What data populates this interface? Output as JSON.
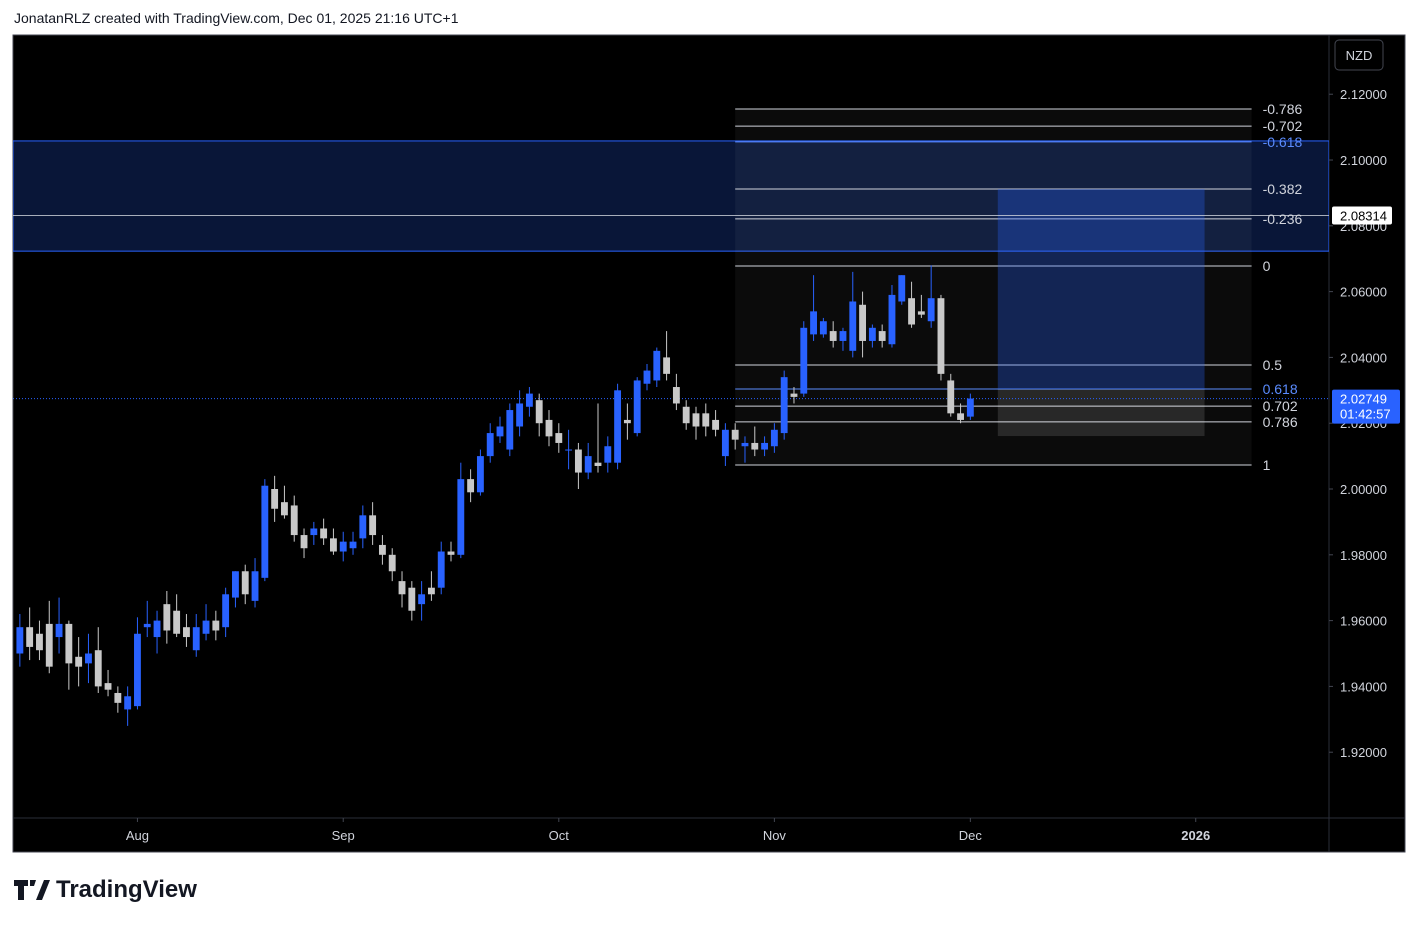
{
  "chart_data": {
    "type": "candlestick",
    "title": "JonatanRLZ created with TradingView.com, Dec 01, 2025 21:16 UTC+1",
    "currency": "NZD",
    "up_color": "#2962ff",
    "down_color": "#c9c9c9",
    "xlim": [
      -0.7,
      133.6
    ],
    "xticks": [
      {
        "value": 12,
        "label": "Aug"
      },
      {
        "value": 33,
        "label": "Sep"
      },
      {
        "value": 55,
        "label": "Oct"
      },
      {
        "value": 77,
        "label": "Nov"
      },
      {
        "value": 97,
        "label": "Dec"
      },
      {
        "value": 120,
        "label": "2026"
      }
    ],
    "ylim": [
      1.9,
      2.138
    ],
    "yticks": [
      {
        "value": 2.12,
        "label": "2.12000"
      },
      {
        "value": 2.1,
        "label": "2.10000"
      },
      {
        "value": 2.08,
        "label": "2.08000"
      },
      {
        "value": 2.06,
        "label": "2.06000"
      },
      {
        "value": 2.04,
        "label": "2.04000"
      },
      {
        "value": 2.02,
        "label": "2.02000"
      },
      {
        "value": 2,
        "label": "2.00000"
      },
      {
        "value": 1.98,
        "label": "1.98000"
      },
      {
        "value": 1.96,
        "label": "1.96000"
      },
      {
        "value": 1.94,
        "label": "1.94000"
      },
      {
        "value": 1.92,
        "label": "1.92000"
      }
    ],
    "series": {
      "open": [
        1.95,
        1.958,
        1.956,
        1.959,
        1.955,
        1.959,
        1.949,
        1.947,
        1.951,
        1.941,
        1.938,
        1.933,
        1.934,
        1.958,
        1.955,
        1.965,
        1.963,
        1.958,
        1.951,
        1.956,
        1.96,
        1.958,
        1.967,
        1.975,
        1.966,
        1.973,
        2.0,
        1.996,
        1.995,
        1.986,
        1.986,
        1.988,
        1.985,
        1.981,
        1.982,
        1.985,
        1.992,
        1.983,
        1.98,
        1.972,
        1.97,
        1.965,
        1.97,
        1.97,
        1.981,
        1.98,
        2.003,
        1.999,
        2.01,
        2.016,
        2.012,
        2.019,
        2.025,
        2.027,
        2.021,
        2.017,
        2.012,
        2.012,
        2.005,
        2.008,
        2.008,
        2.008,
        2.021,
        2.017,
        2.032,
        2.033,
        2.04,
        2.031,
        2.025,
        2.023,
        2.023,
        2.021,
        2.01,
        2.018,
        2.013,
        2.014,
        2.012,
        2.013,
        2.017,
        2.029,
        2.029,
        2.047,
        2.047,
        2.048,
        2.045,
        2.042,
        2.056,
        2.045,
        2.048,
        2.044,
        2.057,
        2.058,
        2.054,
        2.051,
        2.058,
        2.033,
        2.023,
        2.022
      ],
      "high": [
        1.962,
        1.964,
        1.96,
        1.966,
        1.967,
        1.96,
        1.955,
        1.956,
        1.958,
        1.945,
        1.94,
        1.94,
        1.961,
        1.966,
        1.963,
        1.969,
        1.968,
        1.962,
        1.962,
        1.965,
        1.963,
        1.97,
        1.975,
        1.977,
        1.979,
        2.003,
        2.004,
        2.001,
        1.998,
        1.988,
        1.99,
        1.991,
        1.988,
        1.987,
        1.987,
        1.995,
        1.996,
        1.986,
        1.982,
        1.975,
        1.972,
        1.972,
        1.975,
        1.984,
        1.984,
        2.008,
        2.006,
        2.012,
        2.02,
        2.022,
        2.026,
        2.03,
        2.031,
        2.029,
        2.024,
        2.02,
        2.018,
        2.014,
        2.014,
        2.026,
        2.016,
        2.032,
        2.026,
        2.034,
        2.038,
        2.043,
        2.048,
        2.035,
        2.027,
        2.025,
        2.026,
        2.024,
        2.02,
        2.02,
        2.016,
        2.019,
        2.016,
        2.02,
        2.036,
        2.031,
        2.051,
        2.065,
        2.052,
        2.051,
        2.049,
        2.066,
        2.06,
        2.05,
        2.05,
        2.062,
        2.065,
        2.063,
        2.059,
        2.068,
        2.059,
        2.035,
        2.026,
        2.029
      ],
      "low": [
        1.946,
        1.948,
        1.948,
        1.944,
        1.95,
        1.939,
        1.94,
        1.941,
        1.938,
        1.937,
        1.932,
        1.928,
        1.933,
        1.955,
        1.95,
        1.953,
        1.955,
        1.952,
        1.949,
        1.954,
        1.954,
        1.955,
        1.964,
        1.965,
        1.964,
        1.972,
        1.99,
        1.991,
        1.984,
        1.979,
        1.983,
        1.983,
        1.98,
        1.978,
        1.98,
        1.982,
        1.983,
        1.977,
        1.972,
        1.964,
        1.96,
        1.96,
        1.966,
        1.968,
        1.978,
        1.979,
        1.996,
        1.998,
        2.008,
        2.014,
        2.01,
        2.016,
        2.022,
        2.016,
        2.013,
        2.011,
        2.006,
        2.0,
        2.003,
        2.005,
        2.005,
        2.006,
        2.015,
        2.016,
        2.03,
        2.031,
        2.033,
        2.024,
        2.018,
        2.015,
        2.016,
        2.016,
        2.007,
        2.012,
        2.008,
        2.01,
        2.01,
        2.011,
        2.015,
        2.026,
        2.028,
        2.045,
        2.046,
        2.043,
        2.042,
        2.04,
        2.04,
        2.043,
        2.043,
        2.043,
        2.056,
        2.049,
        2.052,
        2.049,
        2.033,
        2.022,
        2.02,
        2.021
      ],
      "close": [
        1.958,
        1.952,
        1.951,
        1.946,
        1.959,
        1.947,
        1.946,
        1.95,
        1.94,
        1.939,
        1.935,
        1.937,
        1.956,
        1.959,
        1.96,
        1.957,
        1.956,
        1.955,
        1.958,
        1.96,
        1.957,
        1.968,
        1.975,
        1.968,
        1.975,
        2.001,
        1.994,
        1.992,
        1.986,
        1.982,
        1.988,
        1.985,
        1.981,
        1.984,
        1.984,
        1.992,
        1.986,
        1.98,
        1.975,
        1.968,
        1.963,
        1.968,
        1.968,
        1.981,
        1.98,
        2.003,
        1.999,
        2.01,
        2.017,
        2.019,
        2.024,
        2.026,
        2.029,
        2.02,
        2.016,
        2.014,
        2.012,
        2.005,
        2.01,
        2.007,
        2.013,
        2.03,
        2.02,
        2.033,
        2.036,
        2.042,
        2.035,
        2.026,
        2.02,
        2.019,
        2.019,
        2.018,
        2.018,
        2.015,
        2.014,
        2.012,
        2.014,
        2.018,
        2.034,
        2.028,
        2.049,
        2.054,
        2.051,
        2.045,
        2.048,
        2.057,
        2.045,
        2.049,
        2.045,
        2.059,
        2.065,
        2.05,
        2.053,
        2.058,
        2.035,
        2.023,
        2.021,
        2.0275
      ]
    },
    "zone": {
      "top": 2.1058,
      "bottom": 2.0723,
      "color": "#2962ff"
    },
    "price_line": {
      "value": 2.08314,
      "label": "2.08314"
    },
    "current_price": {
      "value": 2.02749,
      "label": "2.02749",
      "countdown": "01:42:57"
    },
    "fibonacci": {
      "x_start": 73,
      "x_end": 125.7,
      "levels": [
        {
          "label": "-0.786",
          "price": 2.1155,
          "color": "#d1d4dc"
        },
        {
          "label": "-0.702",
          "price": 2.1103,
          "color": "#d1d4dc"
        },
        {
          "label": "-0.618",
          "price": 2.1055,
          "color": "#5b8cff"
        },
        {
          "label": "-0.382",
          "price": 2.0912,
          "color": "#d1d4dc"
        },
        {
          "label": "-0.236",
          "price": 2.0821,
          "color": "#d1d4dc"
        },
        {
          "label": "0",
          "price": 2.0678,
          "color": "#d1d4dc"
        },
        {
          "label": "0.5",
          "price": 2.0377,
          "color": "#d1d4dc"
        },
        {
          "label": "0.618",
          "price": 2.0304,
          "color": "#5b8cff"
        },
        {
          "label": "0.702",
          "price": 2.0252,
          "color": "#d1d4dc"
        },
        {
          "label": "0.786",
          "price": 2.0204,
          "color": "#d1d4dc"
        },
        {
          "label": "1",
          "price": 2.0073,
          "color": "#d1d4dc"
        }
      ]
    },
    "position": {
      "x_start": 99.8,
      "x_end": 120.9,
      "target": 2.0912,
      "entry": 2.0304,
      "stop": 2.0161
    }
  },
  "footer": {
    "logo_text": "TradingView"
  }
}
